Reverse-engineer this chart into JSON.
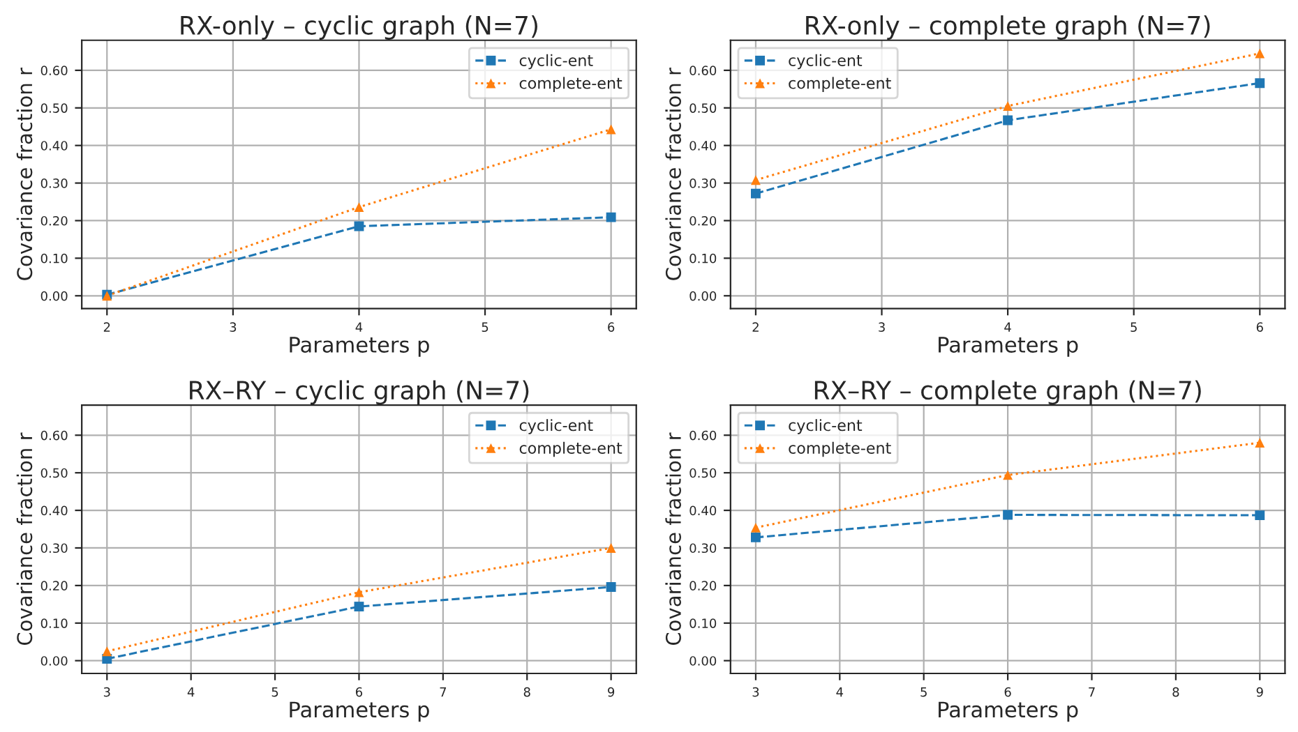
{
  "chart_data": [
    {
      "type": "line",
      "title": "RX-only – cyclic graph (N=7)",
      "xlabel": "Parameters p",
      "ylabel": "Covariance fraction r",
      "x": [
        2,
        4,
        6
      ],
      "xlim": [
        1.8,
        6.2
      ],
      "xticks": [
        2,
        3,
        4,
        5,
        6
      ],
      "ylim": [
        -0.034,
        0.68
      ],
      "yticks": [
        {
          "value": 0,
          "label": "0.00"
        },
        {
          "value": 0.1,
          "label": "0.10"
        },
        {
          "value": 0.2,
          "label": "0.20"
        },
        {
          "value": 0.3,
          "label": "0.30"
        },
        {
          "value": 0.4,
          "label": "0.40"
        },
        {
          "value": 0.5,
          "label": "0.50"
        },
        {
          "value": 0.6,
          "label": "0.60"
        }
      ],
      "grid": true,
      "legend": "top right",
      "series": [
        {
          "name": "cyclic-ent",
          "color": "#1f77b4",
          "marker": "square",
          "line_style": "dashed",
          "values": [
            0.003,
            0.185,
            0.209
          ]
        },
        {
          "name": "complete-ent",
          "color": "#ff7f0e",
          "marker": "triangle",
          "line_style": "dotted",
          "values": [
            0.0,
            0.236,
            0.443
          ]
        }
      ]
    },
    {
      "type": "line",
      "title": "RX-only – complete graph (N=7)",
      "xlabel": "Parameters p",
      "ylabel": "Covariance fraction r",
      "x": [
        2,
        4,
        6
      ],
      "xlim": [
        1.8,
        6.2
      ],
      "xticks": [
        2,
        3,
        4,
        5,
        6
      ],
      "ylim": [
        -0.034,
        0.68
      ],
      "yticks": [
        {
          "value": 0,
          "label": "0.00"
        },
        {
          "value": 0.1,
          "label": "0.10"
        },
        {
          "value": 0.2,
          "label": "0.20"
        },
        {
          "value": 0.3,
          "label": "0.30"
        },
        {
          "value": 0.4,
          "label": "0.40"
        },
        {
          "value": 0.5,
          "label": "0.50"
        },
        {
          "value": 0.6,
          "label": "0.60"
        }
      ],
      "grid": true,
      "legend": "top left",
      "series": [
        {
          "name": "cyclic-ent",
          "color": "#1f77b4",
          "marker": "square",
          "line_style": "dashed",
          "values": [
            0.272,
            0.467,
            0.566
          ]
        },
        {
          "name": "complete-ent",
          "color": "#ff7f0e",
          "marker": "triangle",
          "line_style": "dotted",
          "values": [
            0.308,
            0.505,
            0.645
          ]
        }
      ]
    },
    {
      "type": "line",
      "title": "RX–RY – cyclic graph (N=7)",
      "xlabel": "Parameters p",
      "ylabel": "Covariance fraction r",
      "x": [
        3,
        6,
        9
      ],
      "xlim": [
        2.7,
        9.3
      ],
      "xticks": [
        3,
        4,
        5,
        6,
        7,
        8,
        9
      ],
      "ylim": [
        -0.034,
        0.68
      ],
      "yticks": [
        {
          "value": 0,
          "label": "0.00"
        },
        {
          "value": 0.1,
          "label": "0.10"
        },
        {
          "value": 0.2,
          "label": "0.20"
        },
        {
          "value": 0.3,
          "label": "0.30"
        },
        {
          "value": 0.4,
          "label": "0.40"
        },
        {
          "value": 0.5,
          "label": "0.50"
        },
        {
          "value": 0.6,
          "label": "0.60"
        }
      ],
      "grid": true,
      "legend": "top right",
      "series": [
        {
          "name": "cyclic-ent",
          "color": "#1f77b4",
          "marker": "square",
          "line_style": "dashed",
          "values": [
            0.005,
            0.144,
            0.196
          ]
        },
        {
          "name": "complete-ent",
          "color": "#ff7f0e",
          "marker": "triangle",
          "line_style": "dotted",
          "values": [
            0.025,
            0.182,
            0.3
          ]
        }
      ]
    },
    {
      "type": "line",
      "title": "RX–RY – complete graph (N=7)",
      "xlabel": "Parameters p",
      "ylabel": "Covariance fraction r",
      "x": [
        3,
        6,
        9
      ],
      "xlim": [
        2.7,
        9.3
      ],
      "xticks": [
        3,
        4,
        5,
        6,
        7,
        8,
        9
      ],
      "ylim": [
        -0.034,
        0.68
      ],
      "yticks": [
        {
          "value": 0,
          "label": "0.00"
        },
        {
          "value": 0.1,
          "label": "0.10"
        },
        {
          "value": 0.2,
          "label": "0.20"
        },
        {
          "value": 0.3,
          "label": "0.30"
        },
        {
          "value": 0.4,
          "label": "0.40"
        },
        {
          "value": 0.5,
          "label": "0.50"
        },
        {
          "value": 0.6,
          "label": "0.60"
        }
      ],
      "grid": true,
      "legend": "top left",
      "series": [
        {
          "name": "cyclic-ent",
          "color": "#1f77b4",
          "marker": "square",
          "line_style": "dashed",
          "values": [
            0.328,
            0.388,
            0.387
          ]
        },
        {
          "name": "complete-ent",
          "color": "#ff7f0e",
          "marker": "triangle",
          "line_style": "dotted",
          "values": [
            0.354,
            0.494,
            0.58
          ]
        }
      ]
    }
  ]
}
